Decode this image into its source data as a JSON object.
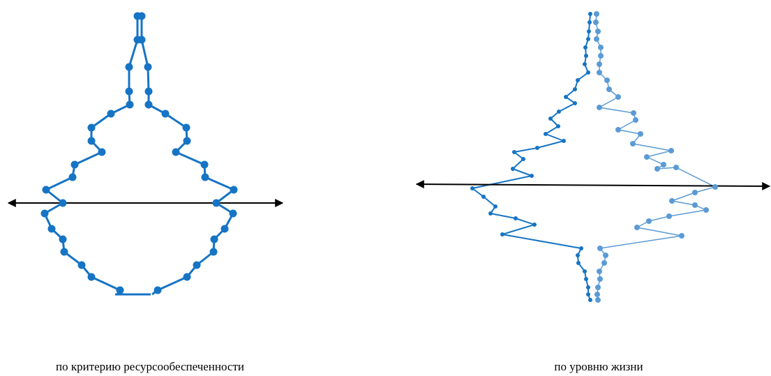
{
  "colors": {
    "background": "#ffffff",
    "axis": "#000000",
    "primary_series": "#1674c4",
    "secondary_series": "#5b9bd5"
  },
  "diagrams": {
    "left": {
      "caption": "по критерию ресурсообеспеченности"
    },
    "right": {
      "caption": "по уровню жизни"
    }
  }
}
